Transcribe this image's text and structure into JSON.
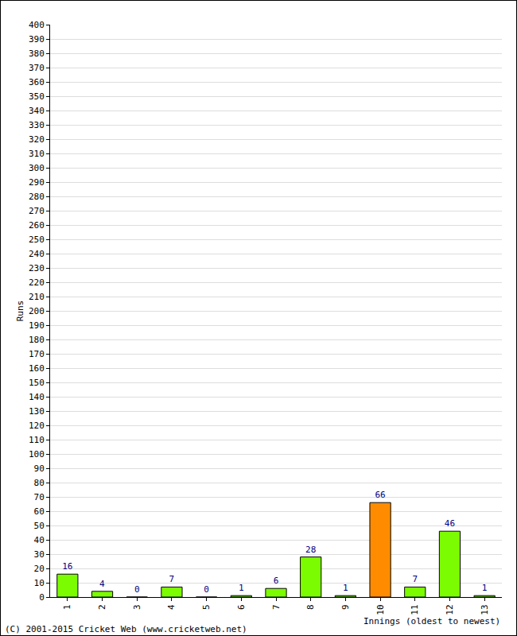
{
  "chart_data": {
    "type": "bar",
    "categories": [
      "1",
      "2",
      "3",
      "4",
      "5",
      "6",
      "7",
      "8",
      "9",
      "10",
      "11",
      "12",
      "13"
    ],
    "values": [
      16,
      4,
      0,
      7,
      0,
      1,
      6,
      28,
      1,
      66,
      7,
      46,
      1
    ],
    "colors": [
      "#7cfc00",
      "#7cfc00",
      "#7cfc00",
      "#7cfc00",
      "#7cfc00",
      "#7cfc00",
      "#7cfc00",
      "#7cfc00",
      "#7cfc00",
      "#ff8c00",
      "#7cfc00",
      "#7cfc00",
      "#7cfc00"
    ],
    "y_label": "Runs",
    "x_label": "Innings (oldest to newest)",
    "annotations": [
      "(C) 2001-2015 Cricket Web (www.cricketweb.net)"
    ],
    "ylim": [
      0,
      400
    ],
    "yticks": [
      0,
      10,
      20,
      30,
      40,
      50,
      60,
      70,
      80,
      90,
      100,
      110,
      120,
      130,
      140,
      150,
      160,
      170,
      180,
      190,
      200,
      210,
      220,
      230,
      240,
      250,
      260,
      270,
      280,
      290,
      300,
      310,
      320,
      330,
      340,
      350,
      360,
      370,
      380,
      390,
      400
    ],
    "grid": true,
    "data_labels": true
  }
}
